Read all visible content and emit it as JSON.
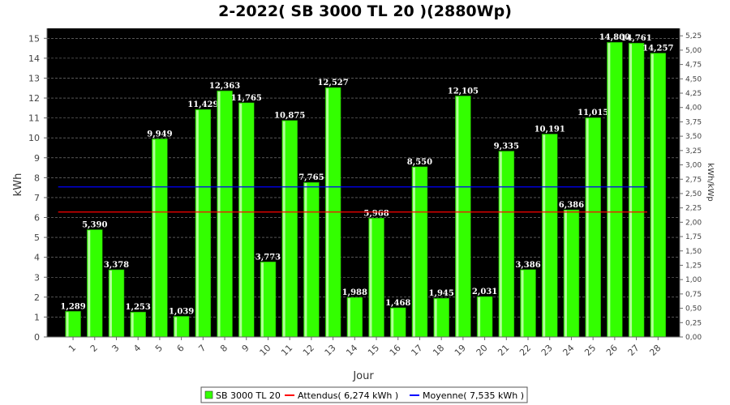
{
  "chart_data": {
    "type": "bar",
    "title": "2-2022( SB 3000 TL 20 )(2880Wp)",
    "xlabel": "Jour",
    "ylabel": "kWh",
    "ylabel_right": "kWh/kWp",
    "ylim": [
      0,
      15.5
    ],
    "ylim_right": [
      0,
      5.38
    ],
    "yticks": [
      0,
      1,
      2,
      3,
      4,
      5,
      6,
      7,
      8,
      9,
      10,
      11,
      12,
      13,
      14,
      15
    ],
    "yticks_right": [
      "0,00",
      "0,25",
      "0,50",
      "0,75",
      "1,00",
      "1,25",
      "1,50",
      "1,75",
      "2,00",
      "2,25",
      "2,50",
      "2,75",
      "3,00",
      "3,25",
      "3,50",
      "3,75",
      "4,00",
      "4,25",
      "4,50",
      "4,75",
      "5,00",
      "5,25"
    ],
    "categories": [
      "1",
      "2",
      "3",
      "4",
      "5",
      "6",
      "7",
      "8",
      "9",
      "10",
      "11",
      "12",
      "13",
      "14",
      "15",
      "16",
      "17",
      "18",
      "19",
      "20",
      "21",
      "22",
      "23",
      "24",
      "25",
      "26",
      "27",
      "28"
    ],
    "values": [
      1.289,
      5.39,
      3.378,
      1.253,
      9.949,
      1.039,
      11.429,
      12.363,
      11.765,
      3.773,
      10.875,
      7.765,
      12.527,
      1.988,
      5.968,
      1.468,
      8.55,
      1.945,
      12.105,
      2.031,
      9.335,
      3.386,
      10.191,
      6.386,
      11.015,
      14.8,
      14.761,
      14.257
    ],
    "labels": [
      "1,289",
      "5,390",
      "3,378",
      "1,253",
      "9,949",
      "1,039",
      "11,429",
      "12,363",
      "11,765",
      "3,773",
      "10,875",
      "7,765",
      "12,527",
      "1,988",
      "5,968",
      "1,468",
      "8,550",
      "1,945",
      "12,105",
      "2,031",
      "9,335",
      "3,386",
      "10,191",
      "6,386",
      "11,015",
      "14,800",
      "14,761",
      "14,257"
    ],
    "lines": [
      {
        "name": "Attendus( 6,274 kWh )",
        "value": 6.274,
        "color": "#ff0000"
      },
      {
        "name": "Moyenne( 7,535 kWh )",
        "value": 7.535,
        "color": "#0000ff"
      }
    ],
    "series_name": "SB 3000 TL 20",
    "bar_color": "#33ff00",
    "plot_bg": "#000000",
    "grid": true,
    "legend_position": "bottom"
  }
}
